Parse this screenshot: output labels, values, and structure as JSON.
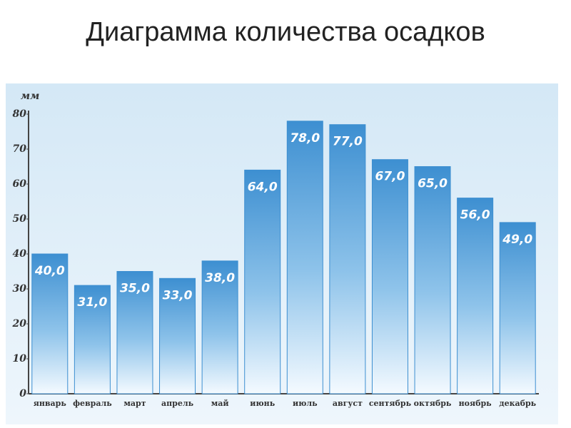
{
  "chart_data": {
    "type": "bar",
    "title": "Диаграмма количества осадков",
    "y_label": "мм",
    "categories": [
      "январь",
      "февраль",
      "март",
      "апрель",
      "май",
      "июнь",
      "июль",
      "август",
      "сентябрь",
      "октябрь",
      "ноябрь",
      "декабрь"
    ],
    "values": [
      40,
      31,
      35,
      33,
      38,
      64,
      78,
      77,
      67,
      65,
      56,
      49
    ],
    "value_labels": [
      "40,0",
      "31,0",
      "35,0",
      "33,0",
      "38,0",
      "64,0",
      "78,0",
      "77,0",
      "67,0",
      "65,0",
      "56,0",
      "49,0"
    ],
    "color": "#3d8fd1",
    "ylim": [
      0,
      80
    ],
    "yticks": [
      0,
      10,
      20,
      30,
      40,
      50,
      60,
      70,
      80
    ]
  }
}
